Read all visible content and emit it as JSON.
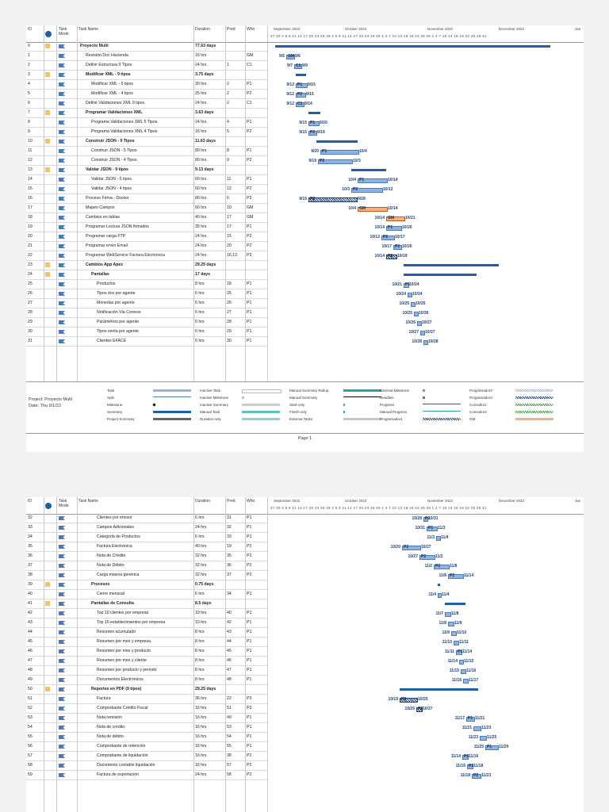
{
  "header": {
    "id": "ID",
    "task_mode": "Task Mode",
    "task_name": "Task Name",
    "duration": "Duration",
    "pred": "Pred",
    "who": "Who",
    "months": [
      "September 2022",
      "October 2022",
      "November 2022",
      "December 2022",
      "Jan"
    ],
    "days": "27 30 2 5 8 11 14 17 20 23 26 29 2 5 8 11 14 17 20 23 26 29 1 4 7 10 13 16 19 22 25 28 1 4 7 10 13 16 19 22 25 28 31"
  },
  "page1_rows": [
    {
      "id": "0",
      "name": "Proyecto Multi",
      "dur": "77.63 days",
      "pred": "",
      "who": "",
      "bold": true,
      "indent": 0
    },
    {
      "id": "1",
      "name": "Revisión Doc Hacienda",
      "dur": "16 hrs",
      "pred": "",
      "who": "GM",
      "indent": 1
    },
    {
      "id": "2",
      "name": "Definir Estructura 9 Tipos",
      "dur": "24 hrs",
      "pred": "1",
      "who": "C1",
      "indent": 1
    },
    {
      "id": "3",
      "name": "Modificar XML - 9 tipos",
      "dur": "3.75 days",
      "pred": "",
      "who": "",
      "bold": true,
      "indent": 1
    },
    {
      "id": "4",
      "name": "Modificar XML - 5 tipos",
      "dur": "30 hrs",
      "pred": "2",
      "who": "P1",
      "indent": 2
    },
    {
      "id": "5",
      "name": "Modificar XML - 4 tipos",
      "dur": "25 hrs",
      "pred": "2",
      "who": "P2",
      "indent": 2
    },
    {
      "id": "6",
      "name": "Definir Validaciones XML 9 tipos",
      "dur": "24 hrs",
      "pred": "2",
      "who": "C1",
      "indent": 1
    },
    {
      "id": "7",
      "name": "Programar Validaciones XML",
      "dur": "3.63 days",
      "pred": "",
      "who": "",
      "bold": true,
      "indent": 1
    },
    {
      "id": "8",
      "name": "Programa Validaciones XML 5 Tipos",
      "dur": "24 hrs",
      "pred": "4",
      "who": "P1",
      "indent": 2
    },
    {
      "id": "9",
      "name": "Programa Validaciones XML 4 Tipos",
      "dur": "16 hrs",
      "pred": "5",
      "who": "P2",
      "indent": 2
    },
    {
      "id": "10",
      "name": "Construir JSON - 9 Tipos",
      "dur": "11.63 days",
      "pred": "",
      "who": "",
      "bold": true,
      "indent": 1
    },
    {
      "id": "11",
      "name": "Construir JSON - 5 Tipos",
      "dur": "80 hrs",
      "pred": "8",
      "who": "P1",
      "indent": 2
    },
    {
      "id": "12",
      "name": "Construir JSON - 4 Tipos",
      "dur": "80 hrs",
      "pred": "9",
      "who": "P2",
      "indent": 2
    },
    {
      "id": "13",
      "name": "Validar JSON - 9 tipos",
      "dur": "9.13 days",
      "pred": "",
      "who": "",
      "bold": true,
      "indent": 1
    },
    {
      "id": "14",
      "name": "Validar JSON - 5 tipos",
      "dur": "60 hrs",
      "pred": "11",
      "who": "P1",
      "indent": 2
    },
    {
      "id": "15",
      "name": "Validar JSON - 4 tipos",
      "dur": "60 hrs",
      "pred": "12",
      "who": "P2",
      "indent": 2
    },
    {
      "id": "16",
      "name": "Proceso Firma - Docker",
      "dur": "80 hrs",
      "pred": "6",
      "who": "P3",
      "indent": 1
    },
    {
      "id": "17",
      "name": "Mapeo Campos",
      "dur": "60 hrs",
      "pred": "10",
      "who": "GM",
      "indent": 1
    },
    {
      "id": "18",
      "name": "Cambios en tablas",
      "dur": "40 hrs",
      "pred": "17",
      "who": "GM",
      "indent": 1
    },
    {
      "id": "19",
      "name": "Programar Lectura JSON firmados",
      "dur": "35 hrs",
      "pred": "17",
      "who": "P1",
      "indent": 1
    },
    {
      "id": "20",
      "name": "Programar carga FTP",
      "dur": "24 hrs",
      "pred": "15",
      "who": "P2",
      "indent": 1
    },
    {
      "id": "21",
      "name": "Programar envio Email",
      "dur": "24 hrs",
      "pred": "20",
      "who": "P2",
      "indent": 1
    },
    {
      "id": "22",
      "name": "Programar WebService Factura Electronica",
      "dur": "24 hrs",
      "pred": "16,13",
      "who": "P3",
      "indent": 1
    },
    {
      "id": "23",
      "name": "Cambios App Apex",
      "dur": "29.25 days",
      "pred": "",
      "who": "",
      "bold": true,
      "indent": 1
    },
    {
      "id": "24",
      "name": "Pantallas",
      "dur": "17 days",
      "pred": "",
      "who": "",
      "bold": true,
      "indent": 2
    },
    {
      "id": "25",
      "name": "Productos",
      "dur": "8 hrs",
      "pred": "18",
      "who": "P1",
      "indent": 3
    },
    {
      "id": "26",
      "name": "Tipos doc por agente",
      "dur": "6 hrs",
      "pred": "25",
      "who": "P1",
      "indent": 3
    },
    {
      "id": "27",
      "name": "Monedas por agente",
      "dur": "6 hrs",
      "pred": "26",
      "who": "P1",
      "indent": 3
    },
    {
      "id": "28",
      "name": "Notificación Via Correos",
      "dur": "6 hrs",
      "pred": "27",
      "who": "P1",
      "indent": 3
    },
    {
      "id": "29",
      "name": "Parámetros por agente",
      "dur": "6 hrs",
      "pred": "28",
      "who": "P1",
      "indent": 3
    },
    {
      "id": "30",
      "name": "Tipos venta por agente",
      "dur": "6 hrs",
      "pred": "29",
      "who": "P1",
      "indent": 3
    },
    {
      "id": "31",
      "name": "Clientes EFACE",
      "dur": "6 hrs",
      "pred": "30",
      "who": "P1",
      "indent": 3
    }
  ],
  "page1_gantt": [
    {
      "row": 0,
      "type": "summary",
      "start": 8,
      "end": 355,
      "l": "",
      "r": ""
    },
    {
      "row": 1,
      "start": 22,
      "end": 31,
      "l": "9/5",
      "r": "9/6",
      "t": "GM"
    },
    {
      "row": 2,
      "start": 32,
      "end": 40,
      "l": "9/7",
      "r": "9/9",
      "t": "C1"
    },
    {
      "row": 3,
      "type": "summary",
      "start": 34,
      "end": 47,
      "l": "",
      "r": ""
    },
    {
      "row": 4,
      "start": 34,
      "end": 47,
      "l": "9/12",
      "r": "9/15",
      "t": "P1"
    },
    {
      "row": 5,
      "start": 34,
      "end": 45,
      "l": "9/12",
      "r": "9/15",
      "t": "P2"
    },
    {
      "row": 6,
      "start": 34,
      "end": 43,
      "l": "9/12",
      "r": "9/14",
      "t": "C1"
    },
    {
      "row": 7,
      "type": "summary",
      "start": 50,
      "end": 65,
      "l": "",
      "r": ""
    },
    {
      "row": 8,
      "start": 50,
      "end": 62,
      "l": "9/15",
      "r": "9/20",
      "t": "P1"
    },
    {
      "row": 9,
      "start": 50,
      "end": 59,
      "l": "9/15",
      "r": "9/19",
      "t": "P2"
    },
    {
      "row": 10,
      "type": "summary",
      "start": 60,
      "end": 112,
      "l": "",
      "r": ""
    },
    {
      "row": 11,
      "start": 65,
      "end": 112,
      "l": "9/20",
      "r": "10/4",
      "t": "P1"
    },
    {
      "row": 12,
      "start": 62,
      "end": 104,
      "l": "9/19",
      "r": "10/3",
      "t": "P2"
    },
    {
      "row": 13,
      "type": "summary",
      "start": 104,
      "end": 148,
      "l": "",
      "r": ""
    },
    {
      "row": 14,
      "start": 112,
      "end": 148,
      "l": "10/4",
      "r": "10/14",
      "t": "P1"
    },
    {
      "row": 15,
      "start": 104,
      "end": 142,
      "l": "10/3",
      "r": "10/12",
      "t": "P2"
    },
    {
      "row": 16,
      "start": 50,
      "end": 110,
      "l": "9/15",
      "r": "9/28",
      "t": "P3",
      "pattern": true
    },
    {
      "row": 17,
      "start": 112,
      "end": 148,
      "l": "10/4",
      "r": "10/14",
      "t": "GM",
      "orange": true
    },
    {
      "row": 18,
      "start": 148,
      "end": 170,
      "l": "10/14",
      "r": "10/21",
      "t": "GM",
      "orange": true
    },
    {
      "row": 19,
      "start": 148,
      "end": 166,
      "l": "10/14",
      "r": "10/20",
      "t": "P1"
    },
    {
      "row": 20,
      "start": 142,
      "end": 157,
      "l": "10/12",
      "r": "10/17",
      "t": "P2"
    },
    {
      "row": 21,
      "start": 157,
      "end": 166,
      "l": "10/17",
      "r": "10/20",
      "t": "P2"
    },
    {
      "row": 22,
      "start": 148,
      "end": 160,
      "l": "10/14",
      "r": "10/19",
      "t": "P3",
      "pattern": true
    },
    {
      "row": 23,
      "type": "summary",
      "start": 170,
      "end": 290,
      "l": "",
      "r": ""
    },
    {
      "row": 24,
      "type": "summary",
      "start": 170,
      "end": 262,
      "l": "",
      "r": ""
    },
    {
      "row": 25,
      "start": 170,
      "end": 175,
      "l": "10/21",
      "r": "10/24",
      "t": "P1"
    },
    {
      "row": 26,
      "start": 175,
      "end": 179,
      "l": "10/24",
      "r": "10/24",
      "t": ""
    },
    {
      "row": 27,
      "start": 179,
      "end": 183,
      "l": "10/25",
      "r": "10/25",
      "t": ""
    },
    {
      "row": 28,
      "start": 183,
      "end": 187,
      "l": "10/25",
      "r": "10/26",
      "t": ""
    },
    {
      "row": 29,
      "start": 187,
      "end": 191,
      "l": "10/26",
      "r": "10/27",
      "t": ""
    },
    {
      "row": 30,
      "start": 191,
      "end": 195,
      "l": "10/27",
      "r": "10/27",
      "t": ""
    },
    {
      "row": 31,
      "start": 195,
      "end": 199,
      "l": "10/28",
      "r": "10/28",
      "t": ""
    }
  ],
  "legend": {
    "project": "Project: Proyecto Multi",
    "date": "Date: Thu 9/1/22",
    "items": [
      [
        "Task",
        "Split",
        "Milestone",
        "Summary",
        "Project Summary"
      ],
      [
        "Inactive Task",
        "Inactive Milestone",
        "Inactive Summary",
        "Manual Task",
        "Duration-only"
      ],
      [
        "Manual Summary Rollup",
        "Manual Summary",
        "Start-only",
        "Finish-only",
        "External Tasks"
      ],
      [
        "External Milestone",
        "Deadline",
        "Progress",
        "Manual Progress",
        "Programador1"
      ],
      [
        "Programador2",
        "Programador3",
        "Consultor1",
        "Consultor2",
        "GM"
      ]
    ]
  },
  "footer": "Page 1",
  "page2_rows": [
    {
      "id": "32",
      "name": "Clientes por emisor",
      "dur": "6 hrs",
      "pred": "31",
      "who": "P1",
      "indent": 3
    },
    {
      "id": "33",
      "name": "Campos Adicionales",
      "dur": "24 hrs",
      "pred": "32",
      "who": "P1",
      "indent": 3
    },
    {
      "id": "34",
      "name": "Categoría de Productos",
      "dur": "6 hrs",
      "pred": "33",
      "who": "P1",
      "indent": 3
    },
    {
      "id": "35",
      "name": "Factura Electrónica",
      "dur": "40 hrs",
      "pred": "19",
      "who": "P2",
      "indent": 3
    },
    {
      "id": "36",
      "name": "Nota de Crédito",
      "dur": "32 hrs",
      "pred": "35",
      "who": "P2",
      "indent": 3
    },
    {
      "id": "37",
      "name": "Nota de Débito",
      "dur": "32 hrs",
      "pred": "36",
      "who": "P2",
      "indent": 3
    },
    {
      "id": "38",
      "name": "Carga masiva genérica",
      "dur": "32 hrs",
      "pred": "37",
      "who": "P2",
      "indent": 3
    },
    {
      "id": "39",
      "name": "Procesos",
      "dur": "0.75 days",
      "pred": "",
      "who": "",
      "bold": true,
      "indent": 2
    },
    {
      "id": "40",
      "name": "Cierre mensual",
      "dur": "6 hrs",
      "pred": "34",
      "who": "P1",
      "indent": 3
    },
    {
      "id": "41",
      "name": "Pantallas de Consulta",
      "dur": "8.5 days",
      "pred": "",
      "who": "",
      "bold": true,
      "indent": 2
    },
    {
      "id": "42",
      "name": "Top 10 clientes por empresa",
      "dur": "10 hrs",
      "pred": "40",
      "who": "P1",
      "indent": 3
    },
    {
      "id": "43",
      "name": "Top 10 establecimientos por empresa",
      "dur": "10 hrs",
      "pred": "42",
      "who": "P1",
      "indent": 3
    },
    {
      "id": "44",
      "name": "Resumen acumulado",
      "dur": "8 hrs",
      "pred": "43",
      "who": "P1",
      "indent": 3
    },
    {
      "id": "45",
      "name": "Resumen por mes y empresa",
      "dur": "8 hrs",
      "pred": "44",
      "who": "P1",
      "indent": 3
    },
    {
      "id": "46",
      "name": "Resumen por mes y producto",
      "dur": "8 hrs",
      "pred": "45",
      "who": "P1",
      "indent": 3
    },
    {
      "id": "47",
      "name": "Resumen por mes y cliente",
      "dur": "8 hrs",
      "pred": "46",
      "who": "P1",
      "indent": 3
    },
    {
      "id": "48",
      "name": "Resumen por producto y periodo",
      "dur": "8 hrs",
      "pred": "47",
      "who": "P1",
      "indent": 3
    },
    {
      "id": "49",
      "name": "Documentos Electrónicos",
      "dur": "8 hrs",
      "pred": "48",
      "who": "P1",
      "indent": 3
    },
    {
      "id": "50",
      "name": "Reportes en PDF (9 tipos)",
      "dur": "29.25 days",
      "pred": "",
      "who": "",
      "bold": true,
      "indent": 2
    },
    {
      "id": "51",
      "name": "Factura",
      "dur": "36 hrs",
      "pred": "22",
      "who": "P3",
      "indent": 3
    },
    {
      "id": "52",
      "name": "Comprobante Crédito Fiscal",
      "dur": "16 hrs",
      "pred": "51",
      "who": "P3",
      "indent": 3
    },
    {
      "id": "53",
      "name": "Nota remisión",
      "dur": "16 hrs",
      "pred": "49",
      "who": "P1",
      "indent": 3
    },
    {
      "id": "54",
      "name": "Nota de crédito",
      "dur": "16 hrs",
      "pred": "53",
      "who": "P1",
      "indent": 3
    },
    {
      "id": "55",
      "name": "Nota de débito",
      "dur": "16 hrs",
      "pred": "54",
      "who": "P1",
      "indent": 3
    },
    {
      "id": "56",
      "name": "Comprobante de retención",
      "dur": "16 hrs",
      "pred": "55",
      "who": "P1",
      "indent": 3
    },
    {
      "id": "57",
      "name": "Comprabante de liquidación",
      "dur": "16 hrs",
      "pred": "38",
      "who": "P2",
      "indent": 3
    },
    {
      "id": "58",
      "name": "Documento contable liquidación",
      "dur": "16 hrs",
      "pred": "57",
      "who": "P2",
      "indent": 3
    },
    {
      "id": "59",
      "name": "Factura de exportación",
      "dur": "24 hrs",
      "pred": "58",
      "who": "P2",
      "indent": 3
    }
  ],
  "page2_gantt": [
    {
      "row": 0,
      "start": 195,
      "end": 199,
      "l": "10/28",
      "r": "10/31",
      "t": "P1"
    },
    {
      "row": 1,
      "start": 199,
      "end": 211,
      "l": "10/31",
      "r": "11/3",
      "t": "P1"
    },
    {
      "row": 2,
      "start": 211,
      "end": 215,
      "l": "11/3",
      "r": "11/4",
      "t": ""
    },
    {
      "row": 3,
      "start": 168,
      "end": 190,
      "l": "10/20",
      "r": "10/27",
      "t": "P2"
    },
    {
      "row": 4,
      "start": 190,
      "end": 208,
      "l": "10/27",
      "r": "11/2",
      "t": "P2"
    },
    {
      "row": 5,
      "start": 208,
      "end": 226,
      "l": "11/2",
      "r": "11/8",
      "t": "P2"
    },
    {
      "row": 6,
      "start": 226,
      "end": 244,
      "l": "11/8",
      "r": "11/14",
      "t": "P2"
    },
    {
      "row": 7,
      "type": "summary",
      "start": 213,
      "end": 216,
      "l": "",
      "r": ""
    },
    {
      "row": 8,
      "start": 213,
      "end": 216,
      "l": "11/4",
      "r": "11/4",
      "t": ""
    },
    {
      "row": 9,
      "type": "summary",
      "start": 222,
      "end": 248,
      "l": "",
      "r": ""
    },
    {
      "row": 10,
      "start": 222,
      "end": 228,
      "l": "11/7",
      "r": "11/8",
      "t": ""
    },
    {
      "row": 11,
      "start": 226,
      "end": 232,
      "l": "11/8",
      "r": "11/9",
      "t": ""
    },
    {
      "row": 12,
      "start": 230,
      "end": 235,
      "l": "11/9",
      "r": "11/10",
      "t": ""
    },
    {
      "row": 13,
      "start": 233,
      "end": 238,
      "l": "11/10",
      "r": "11/11",
      "t": ""
    },
    {
      "row": 14,
      "start": 236,
      "end": 242,
      "l": "11/11",
      "r": "11/14",
      "t": "P1"
    },
    {
      "row": 15,
      "start": 240,
      "end": 244,
      "l": "11/14",
      "r": "11/15",
      "t": ""
    },
    {
      "row": 16,
      "start": 242,
      "end": 247,
      "l": "11/15",
      "r": "11/16",
      "t": ""
    },
    {
      "row": 17,
      "start": 245,
      "end": 250,
      "l": "11/16",
      "r": "11/17",
      "t": ""
    },
    {
      "row": 18,
      "type": "summary",
      "start": 165,
      "end": 264,
      "l": "",
      "r": ""
    },
    {
      "row": 19,
      "start": 165,
      "end": 186,
      "l": "10/19",
      "r": "10/25",
      "t": "P3",
      "pattern": true
    },
    {
      "row": 20,
      "start": 186,
      "end": 192,
      "l": "10/25",
      "r": "10/27",
      "t": "P3",
      "pattern": true
    },
    {
      "row": 21,
      "start": 249,
      "end": 258,
      "l": "11/17",
      "r": "11/21",
      "t": "P1"
    },
    {
      "row": 22,
      "start": 258,
      "end": 266,
      "l": "11/21",
      "r": "11/23",
      "t": ""
    },
    {
      "row": 23,
      "start": 266,
      "end": 273,
      "l": "11/23",
      "r": "11/25",
      "t": ""
    },
    {
      "row": 24,
      "start": 273,
      "end": 288,
      "l": "11/25",
      "r": "11/29",
      "t": "P1"
    },
    {
      "row": 25,
      "start": 244,
      "end": 250,
      "l": "11/14",
      "r": "11/16",
      "t": "P2"
    },
    {
      "row": 26,
      "start": 250,
      "end": 256,
      "l": "11/16",
      "r": "11/18",
      "t": "P2"
    },
    {
      "row": 27,
      "start": 256,
      "end": 266,
      "l": "11/18",
      "r": "11/23",
      "t": "P2"
    }
  ]
}
